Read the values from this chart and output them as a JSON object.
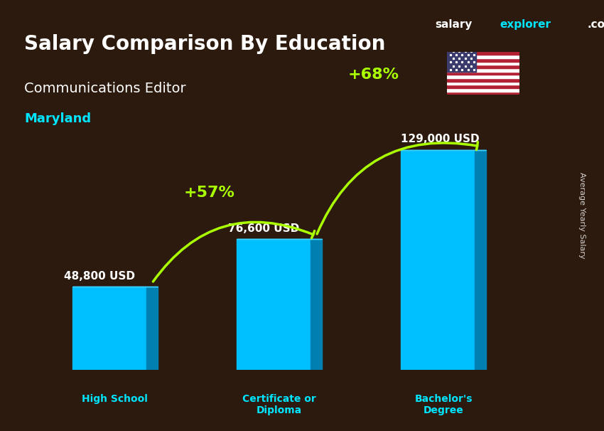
{
  "title_main": "Salary Comparison By Education",
  "title_sub": "Communications Editor",
  "title_location": "Maryland",
  "categories": [
    "High School",
    "Certificate or\nDiploma",
    "Bachelor's\nDegree"
  ],
  "values": [
    48800,
    76600,
    129000
  ],
  "value_labels": [
    "48,800 USD",
    "76,600 USD",
    "129,000 USD"
  ],
  "pct_labels": [
    "+57%",
    "+68%"
  ],
  "bar_color_face": "#00bfff",
  "bar_color_dark": "#0080b0",
  "bar_color_top": "#40d0ff",
  "background_color": "#2c1a0e",
  "text_color_white": "#ffffff",
  "text_color_cyan": "#00e5ff",
  "text_color_green": "#aaff00",
  "arrow_color": "#aaff00",
  "ylabel_text": "Average Yearly Salary",
  "brand_salary": "salary",
  "brand_explorer": "explorer",
  "brand_com": ".com",
  "ylim_max": 160000,
  "bar_width": 0.45
}
